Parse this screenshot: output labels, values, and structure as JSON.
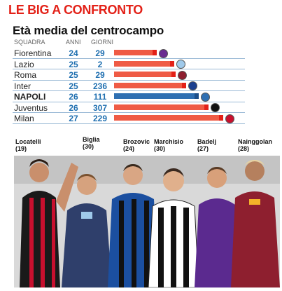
{
  "kicker": "LE BIG A CONFRONTO",
  "title": "Età media del centrocampo",
  "columns": {
    "team": "SQUADRA",
    "age": "ANNI",
    "days": "GIORNI"
  },
  "colors": {
    "red": "#e32118",
    "bar": "#ef5b45",
    "blue": "#2e6fb2",
    "number": "#1f6fb0"
  },
  "chart_data": {
    "type": "bar",
    "categories": [
      "Fiorentina",
      "Lazio",
      "Roma",
      "Inter",
      "NAPOLI",
      "Juventus",
      "Milan"
    ],
    "series": [
      {
        "name": "ANNI",
        "values": [
          24,
          25,
          25,
          25,
          26,
          26,
          27
        ]
      },
      {
        "name": "GIORNI",
        "values": [
          29,
          2,
          29,
          236,
          111,
          307,
          229
        ]
      }
    ],
    "highlight": "NAPOLI",
    "grid": false
  },
  "players": [
    {
      "name": "Locatelli",
      "age": "(19)"
    },
    {
      "name": "Biglia",
      "age": "(30)"
    },
    {
      "name": "Brozovic",
      "age": "(24)"
    },
    {
      "name": "Marchisio",
      "age": "(30)"
    },
    {
      "name": "Badelj",
      "age": "(27)"
    },
    {
      "name": "Nainggolan",
      "age": "(28)"
    }
  ]
}
